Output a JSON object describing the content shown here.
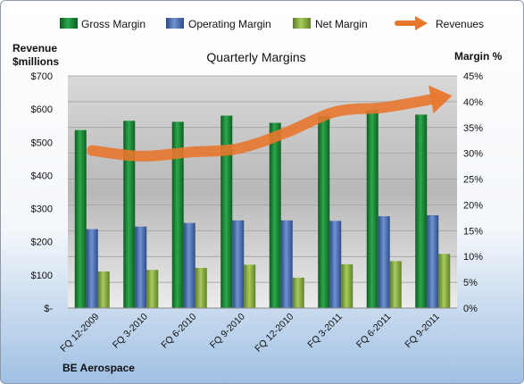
{
  "chart_data": {
    "type": "bar",
    "title": "Quarterly Margins",
    "left_axis_title": [
      "Revenue",
      "$millions"
    ],
    "right_axis_title": "Margin %",
    "categories": [
      "FQ 12-2009",
      "FQ 3-2010",
      "FQ 6-2010",
      "FQ 9-2010",
      "FQ 12-2010",
      "FQ 3-2011",
      "FQ 6-2011",
      "FQ 9-2011"
    ],
    "series": [
      {
        "name": "Gross Margin",
        "axis": "right",
        "type": "bar",
        "values": [
          34.5,
          36.3,
          36.1,
          37.3,
          35.9,
          37.2,
          38.4,
          37.5
        ]
      },
      {
        "name": "Operating Margin",
        "axis": "right",
        "type": "bar",
        "values": [
          15.3,
          15.8,
          16.5,
          17.0,
          17.0,
          16.9,
          17.8,
          18.0
        ]
      },
      {
        "name": "Net Margin",
        "axis": "right",
        "type": "bar",
        "values": [
          7.1,
          7.4,
          7.8,
          8.4,
          5.9,
          8.5,
          9.1,
          10.5
        ]
      },
      {
        "name": "Revenues",
        "axis": "left",
        "type": "line",
        "values": [
          475,
          458,
          470,
          481,
          530,
          592,
          605,
          630
        ]
      }
    ],
    "left_ticks": [
      "$-",
      "$100",
      "$200",
      "$300",
      "$400",
      "$500",
      "$600",
      "$700"
    ],
    "right_ticks": [
      "0%",
      "5%",
      "10%",
      "15%",
      "20%",
      "25%",
      "30%",
      "35%",
      "40%",
      "45%"
    ],
    "ylim_left": [
      0,
      700
    ],
    "ylim_right": [
      0,
      45
    ],
    "legend_position": "top",
    "colors": {
      "gross": "#1f8a3c",
      "operating": "#4a6fb5",
      "net": "#8cb043",
      "revenues": "#e8772e"
    }
  },
  "footer": "BE Aerospace"
}
